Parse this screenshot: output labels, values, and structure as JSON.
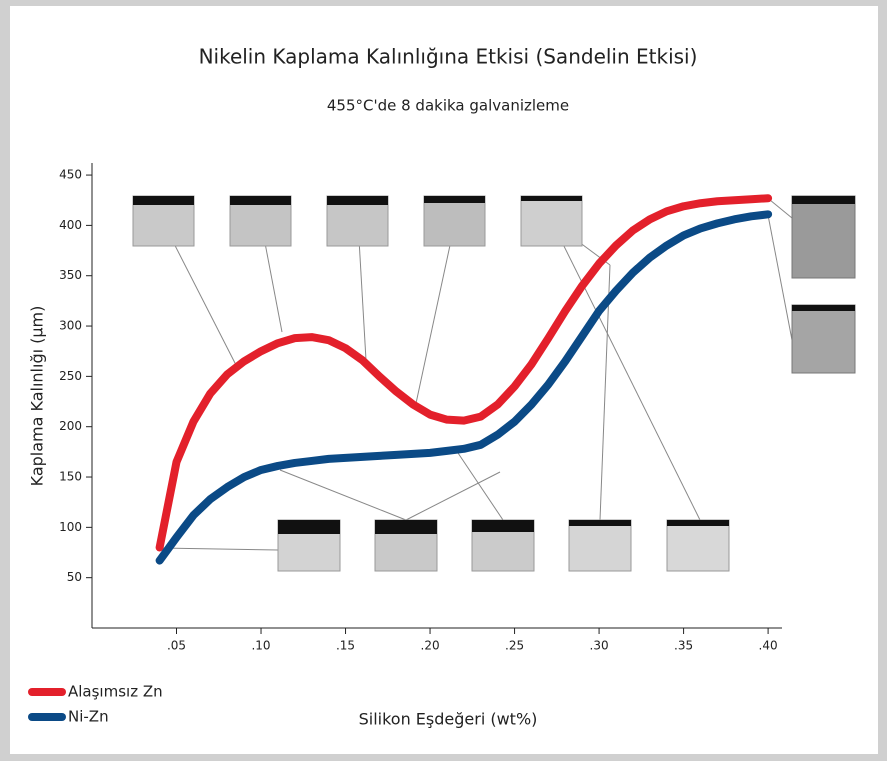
{
  "chart_data": {
    "type": "line",
    "title": "Nikelin Kaplama Kalınlığına Etkisi (Sandelin Etkisi)",
    "subtitle": "455°C'de 8 dakika galvanizleme",
    "x_label": "Silikon Eşdeğeri (wt%)",
    "y_label": "Kaplama Kalınlığı (µm)",
    "x": [
      0.04,
      0.05,
      0.06,
      0.07,
      0.08,
      0.09,
      0.1,
      0.11,
      0.12,
      0.13,
      0.14,
      0.15,
      0.16,
      0.17,
      0.18,
      0.19,
      0.2,
      0.21,
      0.22,
      0.23,
      0.24,
      0.25,
      0.26,
      0.27,
      0.28,
      0.29,
      0.3,
      0.31,
      0.32,
      0.33,
      0.34,
      0.35,
      0.36,
      0.37,
      0.38,
      0.39,
      0.4
    ],
    "series": [
      {
        "name": "Alaşımsız Zn",
        "color": "#e3202b",
        "values": [
          80,
          165,
          205,
          233,
          252,
          265,
          275,
          283,
          288,
          289,
          286,
          278,
          266,
          250,
          235,
          222,
          212,
          207,
          206,
          210,
          222,
          240,
          262,
          288,
          315,
          340,
          362,
          380,
          395,
          406,
          414,
          419,
          422,
          424,
          425,
          426,
          427
        ]
      },
      {
        "name": "Ni-Zn",
        "color": "#0b4a86",
        "values": [
          67,
          90,
          112,
          128,
          140,
          150,
          157,
          161,
          164,
          166,
          168,
          169,
          170,
          171,
          172,
          173,
          174,
          176,
          178,
          182,
          192,
          205,
          222,
          242,
          265,
          290,
          315,
          335,
          353,
          368,
          380,
          390,
          397,
          402,
          406,
          409,
          411
        ]
      }
    ],
    "xlim": [
      0,
      0.41
    ],
    "xticks": [
      {
        "value": 0.05,
        "label": ".05"
      },
      {
        "value": 0.1,
        "label": ".10"
      },
      {
        "value": 0.15,
        "label": ".15"
      },
      {
        "value": 0.2,
        "label": ".20"
      },
      {
        "value": 0.25,
        "label": ".25"
      },
      {
        "value": 0.3,
        "label": ".30"
      },
      {
        "value": 0.35,
        "label": ".35"
      },
      {
        "value": 0.4,
        "label": ".40"
      }
    ],
    "ylim": [
      0,
      460
    ],
    "yticks": [
      50,
      100,
      150,
      200,
      250,
      300,
      350,
      400,
      450
    ],
    "legend": "bottom-left"
  }
}
